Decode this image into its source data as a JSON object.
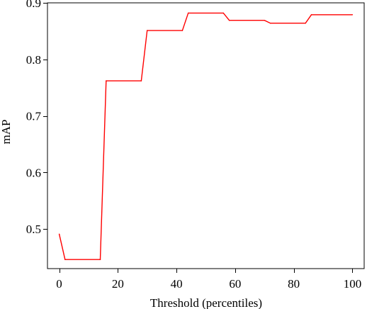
{
  "chart_data": {
    "type": "line",
    "title": "",
    "xlabel": "Threshold (percentiles)",
    "ylabel": "mAP",
    "xlim": [
      -4,
      104
    ],
    "ylim": [
      0.43,
      0.9
    ],
    "x_ticks": [
      0,
      20,
      40,
      60,
      80,
      100
    ],
    "x_tick_labels": [
      "0",
      "20",
      "40",
      "60",
      "80",
      "100"
    ],
    "y_ticks": [
      0.5,
      0.6,
      0.7,
      0.8,
      0.9
    ],
    "y_tick_labels": [
      "0.5",
      "0.6",
      "0.7",
      "0.8",
      "0.9"
    ],
    "grid": false,
    "legend": "none",
    "series": [
      {
        "color": "#ff0000",
        "x": [
          0,
          2,
          14,
          16,
          28,
          30,
          42,
          44,
          56,
          58,
          70,
          72,
          84,
          86,
          100
        ],
        "y": [
          0.491,
          0.446,
          0.446,
          0.762,
          0.762,
          0.851,
          0.851,
          0.882,
          0.882,
          0.869,
          0.869,
          0.864,
          0.864,
          0.879,
          0.879
        ]
      }
    ]
  }
}
